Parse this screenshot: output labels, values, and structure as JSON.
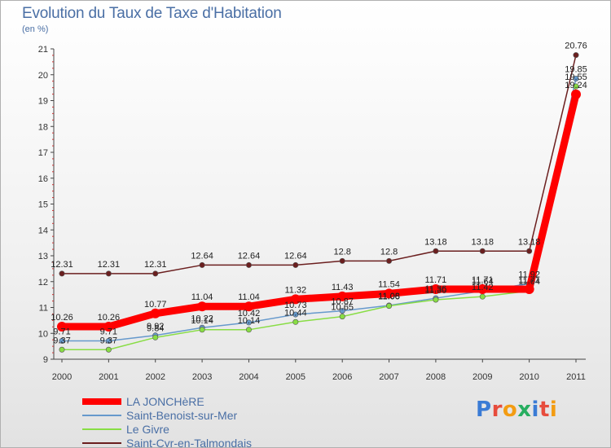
{
  "title": "Evolution du Taux de Taxe d'Habitation",
  "unit_label": "(en %)",
  "brand": {
    "letters": [
      "P",
      "r",
      "o",
      "x",
      "i",
      "t",
      "i"
    ],
    "colors": [
      "#3a7bd5",
      "#e74c3c",
      "#f39c12",
      "#27ae60",
      "#3a7bd5",
      "#e74c3c",
      "#f39c12"
    ]
  },
  "chart_data": {
    "type": "line",
    "title": "Evolution du Taux de Taxe d'Habitation",
    "ylabel": "(en %)",
    "xlabel": "",
    "x": [
      "2000",
      "2001",
      "2002",
      "2003",
      "2004",
      "2005",
      "2006",
      "2007",
      "2008",
      "2009",
      "2010",
      "2011"
    ],
    "ylim": [
      9,
      21
    ],
    "yticks": [
      "9",
      "10",
      "11",
      "12",
      "13",
      "14",
      "15",
      "16",
      "17",
      "18",
      "19",
      "20",
      "21"
    ],
    "grid": false,
    "legend_position": "bottom-left",
    "series": [
      {
        "name": "Saint-Cyr-en-Talmondais",
        "color": "#6b1f1f",
        "values": [
          12.31,
          12.31,
          12.31,
          12.64,
          12.64,
          12.64,
          12.8,
          12.8,
          13.18,
          13.18,
          13.18,
          20.76
        ],
        "labels": [
          "12.31",
          "12.31",
          "12.31",
          "12.64",
          "12.64",
          "12.64",
          "12.8",
          "12.8",
          "13.18",
          "13.18",
          "13.18",
          "20.76"
        ]
      },
      {
        "name": "Saint-Benoist-sur-Mer",
        "color": "#6699cc",
        "values": [
          9.71,
          9.71,
          9.92,
          10.22,
          10.42,
          10.73,
          10.87,
          11.08,
          11.36,
          11.64,
          11.92,
          19.85
        ],
        "labels": [
          "9.71",
          "9.71",
          "9.92",
          "10.22",
          "10.42",
          "10.73",
          "10.87",
          "11.08",
          "11.36",
          "11.64",
          "11.92",
          "19.85"
        ]
      },
      {
        "name": "Le Givre",
        "color": "#88dd44",
        "values": [
          9.37,
          9.37,
          9.84,
          10.14,
          10.14,
          10.44,
          10.65,
          11.06,
          11.3,
          11.42,
          11.64,
          19.55
        ],
        "labels": [
          "9.37",
          "9.37",
          "9.84",
          "10.14",
          "10.14",
          "10.44",
          "10.65",
          "11.06",
          "11.30",
          "11.42",
          "11.64",
          "19.55"
        ]
      },
      {
        "name": "LA JONCHèRE",
        "color": "#ff0000",
        "values": [
          10.26,
          10.26,
          10.77,
          11.04,
          11.04,
          11.32,
          11.43,
          11.54,
          11.71,
          11.71,
          11.71,
          19.24
        ],
        "labels": [
          "10.26",
          "10.26",
          "10.77",
          "11.04",
          "11.04",
          "11.32",
          "11.43",
          "11.54",
          "11.71",
          "11.71",
          "11.71",
          "19.24"
        ]
      }
    ],
    "legend_order": [
      "LA JONCHèRE",
      "Saint-Benoist-sur-Mer",
      "Le Givre",
      "Saint-Cyr-en-Talmondais"
    ]
  }
}
